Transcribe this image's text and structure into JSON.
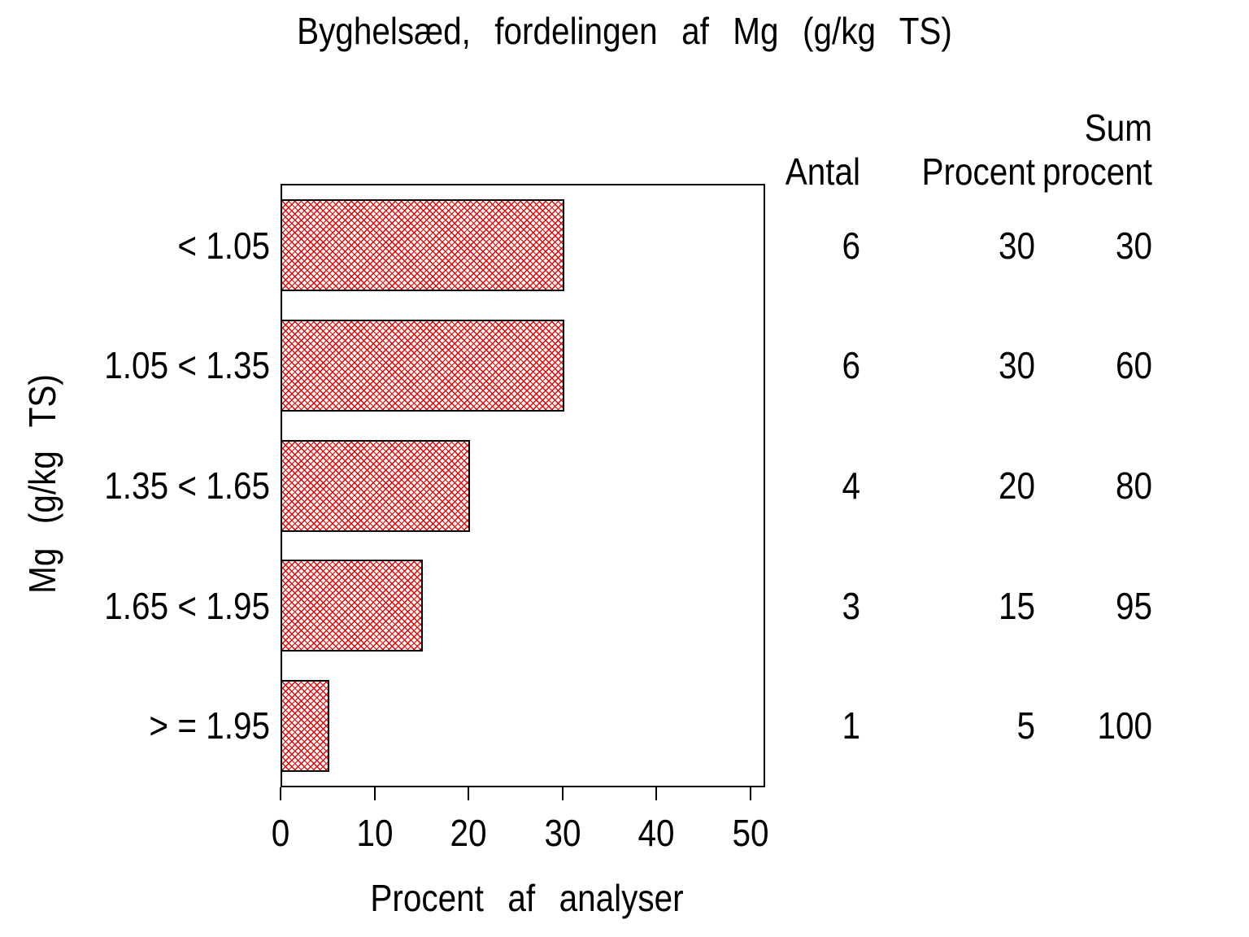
{
  "chart_data": {
    "type": "bar",
    "orientation": "horizontal",
    "title": "Byghelsæd, fordelingen af Mg (g/kg TS)",
    "xlabel": "Procent af analyser",
    "ylabel": "Mg (g/kg TS)",
    "categories": [
      "< 1.05",
      "1.05 < 1.35",
      "1.35 < 1.65",
      "1.65 < 1.95",
      "> = 1.95"
    ],
    "values": [
      30,
      30,
      20,
      15,
      5
    ],
    "xlim": [
      0,
      50
    ],
    "xticks": [
      0,
      10,
      20,
      30,
      40,
      50
    ],
    "grid": false,
    "frame": true,
    "bar_pattern": "red-crosshatch",
    "bar_color": "#ee0000",
    "bar_outline_color": "#000000",
    "table": {
      "columns": [
        "Antal",
        "Procent",
        "Sum procent"
      ],
      "columns_display": [
        "Antal",
        "Procent",
        "Sum\nprocent"
      ],
      "rows": [
        {
          "antal": 6,
          "procent": 30,
          "sum_procent": 30
        },
        {
          "antal": 6,
          "procent": 30,
          "sum_procent": 60
        },
        {
          "antal": 4,
          "procent": 20,
          "sum_procent": 80
        },
        {
          "antal": 3,
          "procent": 15,
          "sum_procent": 95
        },
        {
          "antal": 1,
          "procent": 5,
          "sum_procent": 100
        }
      ]
    }
  }
}
